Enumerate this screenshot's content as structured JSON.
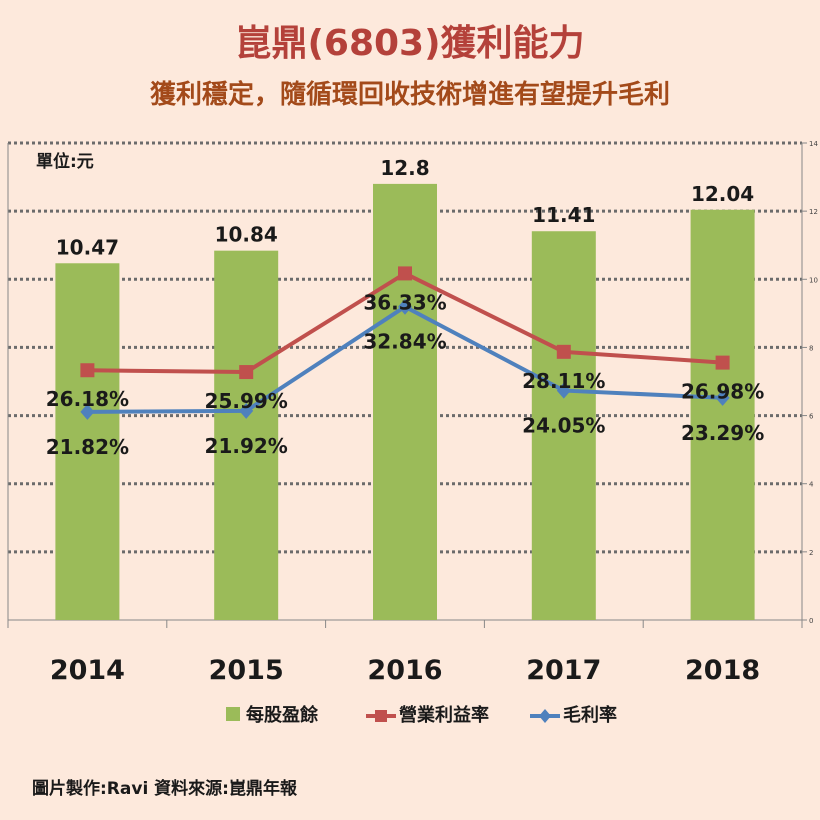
{
  "header": {
    "title": "崑鼎(6803)獲利能力",
    "subtitle": "獲利穩定，隨循環回收技術增進有望提升毛利"
  },
  "footer": {
    "credit": "圖片製作:Ravi  資料來源:崑鼎年報"
  },
  "colors": {
    "background": "#fde9dc",
    "bar": "#9bbb59",
    "operating_margin": "#c0504d",
    "gross_margin": "#4f81bd",
    "title": "#b4413a",
    "subtitle": "#a34a1a"
  },
  "chart_data": {
    "type": "bar",
    "title": "崑鼎(6803)獲利能力",
    "subtitle": "獲利穩定，隨循環回收技術增進有望提升毛利",
    "unit_label": "單位:元",
    "categories": [
      "2014",
      "2015",
      "2016",
      "2017",
      "2018"
    ],
    "ylim": [
      0,
      14
    ],
    "yticks": [
      0,
      2,
      4,
      6,
      8,
      10,
      12,
      14
    ],
    "grid": true,
    "legend_position": "bottom",
    "series": [
      {
        "name": "每股盈餘",
        "kind": "bar",
        "values": [
          10.47,
          10.84,
          12.8,
          11.41,
          12.04
        ],
        "labels": [
          "10.47",
          "10.84",
          "12.8",
          "11.41",
          "12.04"
        ]
      },
      {
        "name": "營業利益率",
        "kind": "line",
        "marker": "square",
        "values": [
          26.18,
          25.99,
          36.33,
          28.11,
          26.98
        ],
        "labels": [
          "26.18%",
          "25.99%",
          "36.33%",
          "28.11%",
          "26.98%"
        ]
      },
      {
        "name": "毛利率",
        "kind": "line",
        "marker": "diamond",
        "values": [
          21.82,
          21.92,
          32.84,
          24.05,
          23.29
        ],
        "labels": [
          "21.82%",
          "21.92%",
          "32.84%",
          "24.05%",
          "23.29%"
        ]
      }
    ]
  }
}
